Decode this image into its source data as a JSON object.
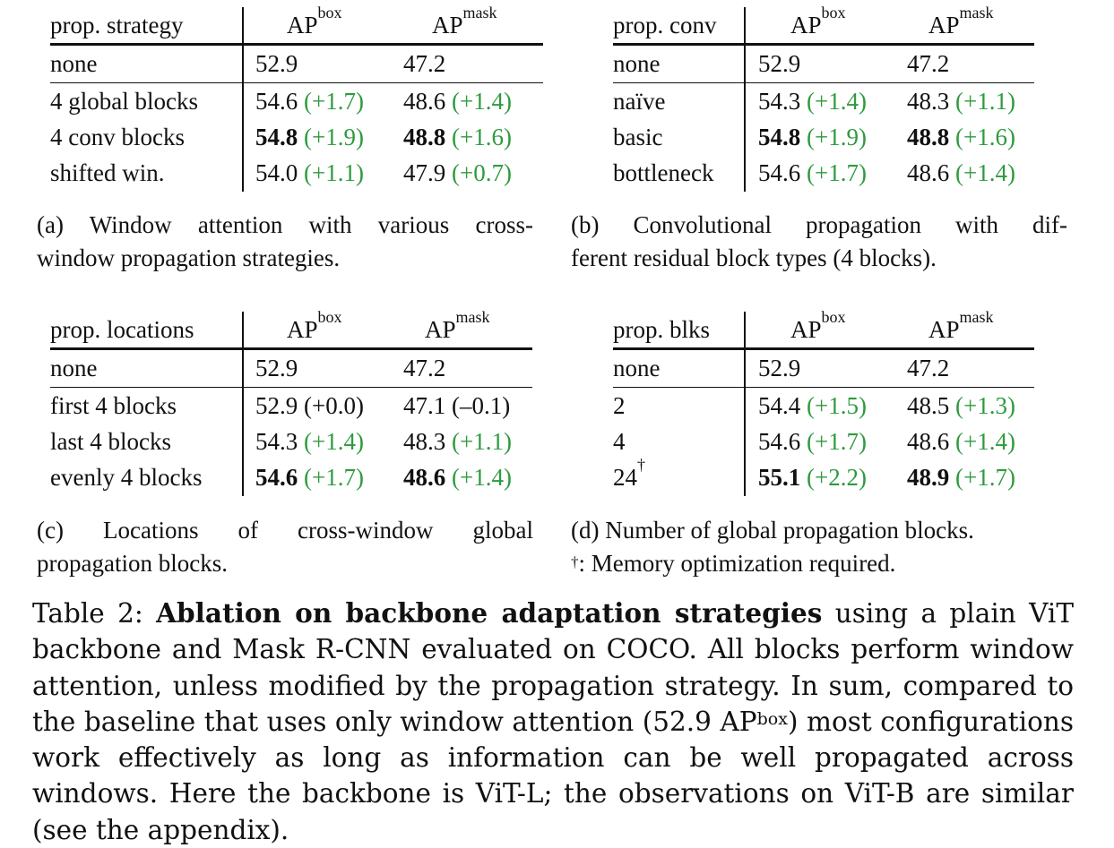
{
  "tables": [
    {
      "id": "a",
      "header": [
        "prop. strategy",
        "AP",
        "box",
        "AP",
        "mask"
      ],
      "rows": [
        {
          "label": "none",
          "box": "52.9",
          "box_delta": "",
          "mask": "47.2",
          "mask_delta": "",
          "bold": false,
          "green": false
        },
        {
          "label": "4 global blocks",
          "box": "54.6",
          "box_delta": "(+1.7)",
          "mask": "48.6",
          "mask_delta": "(+1.4)",
          "bold": false,
          "green": true
        },
        {
          "label": "4 conv blocks",
          "box": "54.8",
          "box_delta": "(+1.9)",
          "mask": "48.8",
          "mask_delta": "(+1.6)",
          "bold": true,
          "green": true
        },
        {
          "label": "shifted win.",
          "box": "54.0",
          "box_delta": "(+1.1)",
          "mask": "47.9",
          "mask_delta": "(+0.7)",
          "bold": false,
          "green": true
        }
      ],
      "caption": [
        "(a) Window attention with various cross-",
        "window propagation strategies."
      ]
    },
    {
      "id": "b",
      "header": [
        "prop. conv",
        "AP",
        "box",
        "AP",
        "mask"
      ],
      "rows": [
        {
          "label": "none",
          "box": "52.9",
          "box_delta": "",
          "mask": "47.2",
          "mask_delta": "",
          "bold": false,
          "green": false
        },
        {
          "label": "naïve",
          "box": "54.3",
          "box_delta": "(+1.4)",
          "mask": "48.3",
          "mask_delta": "(+1.1)",
          "bold": false,
          "green": true
        },
        {
          "label": "basic",
          "box": "54.8",
          "box_delta": "(+1.9)",
          "mask": "48.8",
          "mask_delta": "(+1.6)",
          "bold": true,
          "green": true
        },
        {
          "label": "bottleneck",
          "box": "54.6",
          "box_delta": "(+1.7)",
          "mask": "48.6",
          "mask_delta": "(+1.4)",
          "bold": false,
          "green": true
        }
      ],
      "caption": [
        "(b) Convolutional propagation with dif-",
        "ferent residual block types (4 blocks)."
      ]
    },
    {
      "id": "c",
      "header": [
        "prop. locations",
        "AP",
        "box",
        "AP",
        "mask"
      ],
      "rows": [
        {
          "label": "none",
          "box": "52.9",
          "box_delta": "",
          "mask": "47.2",
          "mask_delta": "",
          "bold": false,
          "green": false
        },
        {
          "label": "first 4 blocks",
          "box": "52.9",
          "box_delta": "(+0.0)",
          "mask": "47.1",
          "mask_delta": "(–0.1)",
          "bold": false,
          "green": false
        },
        {
          "label": "last 4 blocks",
          "box": "54.3",
          "box_delta": "(+1.4)",
          "mask": "48.3",
          "mask_delta": "(+1.1)",
          "bold": false,
          "green": true
        },
        {
          "label": "evenly 4 blocks",
          "box": "54.6",
          "box_delta": "(+1.7)",
          "mask": "48.6",
          "mask_delta": "(+1.4)",
          "bold": true,
          "green": true
        }
      ],
      "caption": [
        "(c) Locations of cross-window global",
        "propagation blocks."
      ]
    },
    {
      "id": "d",
      "header": [
        "prop. blks",
        "AP",
        "box",
        "AP",
        "mask"
      ],
      "rows": [
        {
          "label": "none",
          "box": "52.9",
          "box_delta": "",
          "mask": "47.2",
          "mask_delta": "",
          "bold": false,
          "green": false
        },
        {
          "label": "2",
          "box": "54.4",
          "box_delta": "(+1.5)",
          "mask": "48.5",
          "mask_delta": "(+1.3)",
          "bold": false,
          "green": true
        },
        {
          "label": "4",
          "box": "54.6",
          "box_delta": "(+1.7)",
          "mask": "48.6",
          "mask_delta": "(+1.4)",
          "bold": false,
          "green": true
        },
        {
          "label": "24",
          "label_sup": "†",
          "box": "55.1",
          "box_delta": "(+2.2)",
          "mask": "48.9",
          "mask_delta": "(+1.7)",
          "bold": true,
          "green": true
        }
      ],
      "caption": [
        "(d) Number of global propagation blocks.",
        "†",
        ": Memory optimization required."
      ]
    }
  ],
  "main_caption": {
    "prefix": "Table 2: ",
    "bold": "Ablation on backbone adaptation strategies",
    "text1": " using a plain ViT backbone and Mask R-CNN evaluated on COCO. All blocks perform window attention, unless modified by the propagation strategy. In sum, compared to the baseline that uses only window attention (52.9 AP",
    "sup": "box",
    "text2": ") most configurations work effectively as long as information can be well propagated across windows. Here the backbone is ViT-L; the observations on ViT-B are similar (see the appendix)."
  },
  "colors": {
    "positive_delta": "#2e9b3e",
    "text": "#111111"
  }
}
